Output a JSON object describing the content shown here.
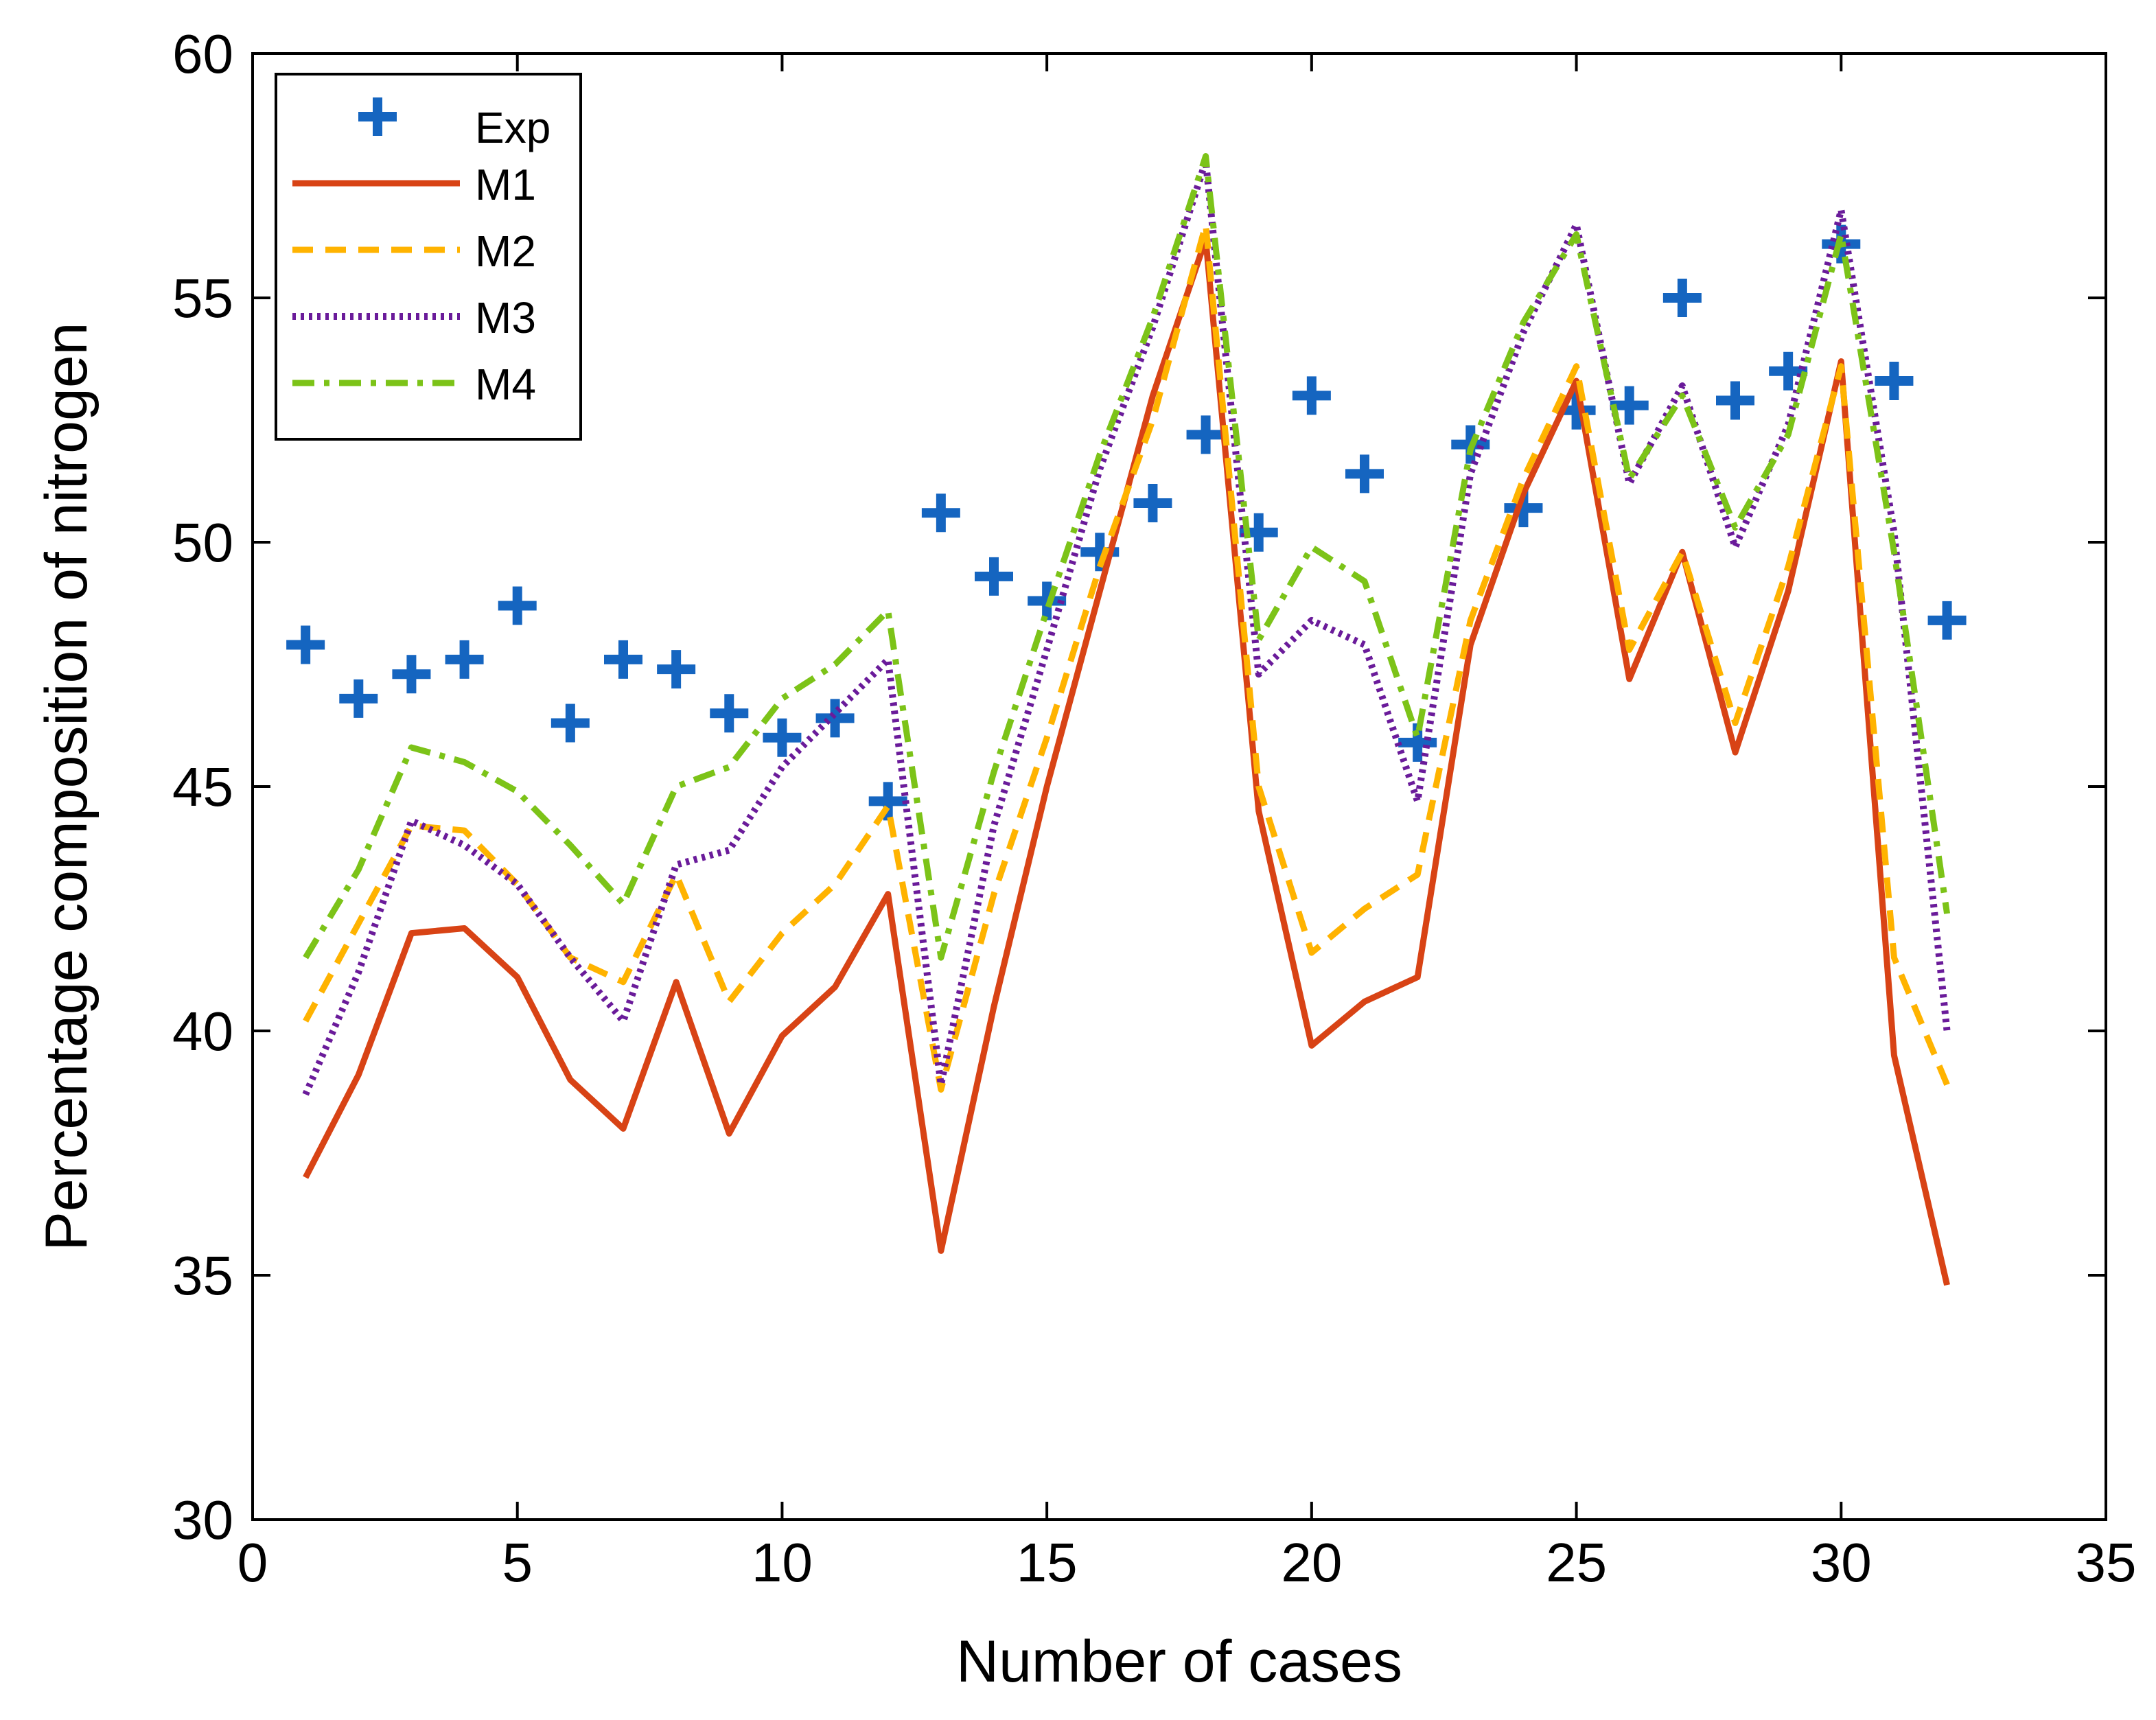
{
  "chart_data": {
    "type": "line",
    "title": "",
    "xlabel": "Number of cases",
    "ylabel": "Percentage composition of nitrogen",
    "xlim": [
      0,
      35
    ],
    "ylim": [
      30,
      60
    ],
    "xticks": [
      0,
      5,
      10,
      15,
      20,
      25,
      30,
      35
    ],
    "yticks": [
      30,
      35,
      40,
      45,
      50,
      55,
      60
    ],
    "grid": false,
    "legend_position": "top-left",
    "x": [
      1,
      2,
      3,
      4,
      5,
      6,
      7,
      8,
      9,
      10,
      11,
      12,
      13,
      14,
      15,
      16,
      17,
      18,
      19,
      20,
      21,
      22,
      23,
      24,
      25,
      26,
      27,
      28,
      29,
      30,
      31,
      32
    ],
    "series": [
      {
        "name": "Exp",
        "style": "marker-plus",
        "color": "#1565C0",
        "values": [
          47.9,
          46.8,
          47.3,
          47.6,
          48.7,
          46.3,
          47.6,
          47.4,
          46.5,
          46.0,
          46.4,
          44.7,
          50.6,
          49.3,
          48.8,
          49.8,
          50.8,
          52.2,
          50.2,
          53.0,
          51.4,
          45.9,
          52.0,
          50.7,
          52.7,
          52.8,
          55.0,
          52.9,
          53.5,
          56.1,
          53.3,
          48.4
        ]
      },
      {
        "name": "M1",
        "style": "solid",
        "color": "#D84315",
        "values": [
          37.0,
          39.1,
          42.0,
          42.1,
          41.1,
          39.0,
          38.0,
          41.0,
          37.9,
          39.9,
          40.9,
          42.8,
          35.5,
          40.5,
          45.0,
          49.0,
          53.0,
          56.2,
          44.5,
          39.7,
          40.6,
          41.1,
          47.9,
          51.0,
          53.3,
          47.2,
          49.8,
          45.7,
          49.0,
          53.7,
          39.5,
          34.8
        ]
      },
      {
        "name": "M2",
        "style": "dashed",
        "color": "#FFB300",
        "values": [
          40.2,
          42.2,
          44.2,
          44.1,
          43.0,
          41.5,
          41.0,
          43.2,
          40.6,
          42.0,
          43.0,
          44.6,
          38.8,
          42.8,
          46.0,
          49.5,
          52.5,
          56.5,
          45.0,
          41.6,
          42.5,
          43.2,
          48.4,
          51.3,
          53.6,
          47.8,
          49.8,
          46.3,
          49.5,
          53.6,
          41.5,
          38.9
        ]
      },
      {
        "name": "M3",
        "style": "dotted",
        "color": "#6A1B9A",
        "values": [
          38.7,
          41.2,
          44.3,
          43.8,
          43.0,
          41.5,
          40.2,
          43.4,
          43.7,
          45.4,
          46.5,
          47.6,
          38.9,
          44.2,
          47.8,
          51.5,
          54.4,
          57.8,
          47.3,
          48.4,
          47.9,
          44.7,
          51.4,
          54.3,
          56.5,
          51.2,
          53.2,
          49.9,
          52.4,
          56.8,
          50.2,
          40.0
        ]
      },
      {
        "name": "M4",
        "style": "dashdot",
        "color": "#7CC318",
        "values": [
          41.5,
          43.3,
          45.8,
          45.5,
          44.9,
          43.8,
          42.6,
          45.0,
          45.4,
          46.8,
          47.5,
          48.6,
          41.5,
          45.3,
          48.6,
          51.8,
          54.6,
          57.9,
          48.0,
          49.9,
          49.2,
          46.0,
          51.9,
          54.5,
          56.3,
          51.3,
          53.0,
          50.3,
          52.2,
          56.3,
          49.8,
          42.4
        ]
      }
    ]
  }
}
